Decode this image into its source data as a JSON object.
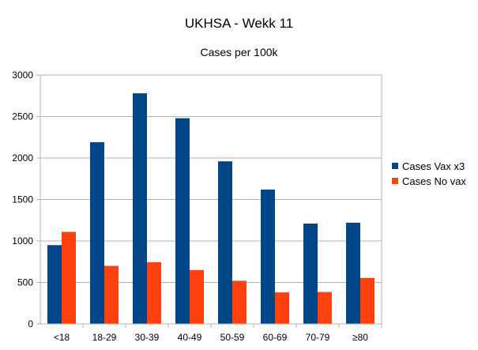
{
  "chart_data": {
    "type": "bar",
    "title": "UKHSA - Wekk 11",
    "subtitle": "Cases per 100k",
    "categories": [
      "<18",
      "18-29",
      "30-39",
      "40-49",
      "50-59",
      "60-69",
      "70-79",
      "≥80"
    ],
    "series": [
      {
        "name": "Cases Vax x3",
        "color": "#004586",
        "values": [
          950,
          2190,
          2780,
          2480,
          1960,
          1620,
          1210,
          1220
        ]
      },
      {
        "name": "Cases No vax",
        "color": "#ff420e",
        "values": [
          1110,
          700,
          745,
          650,
          520,
          380,
          385,
          555
        ]
      }
    ],
    "ylim": [
      0,
      3000
    ],
    "yticks": [
      0,
      500,
      1000,
      1500,
      2000,
      2500,
      3000
    ],
    "grid": true,
    "legend_position": "right"
  }
}
